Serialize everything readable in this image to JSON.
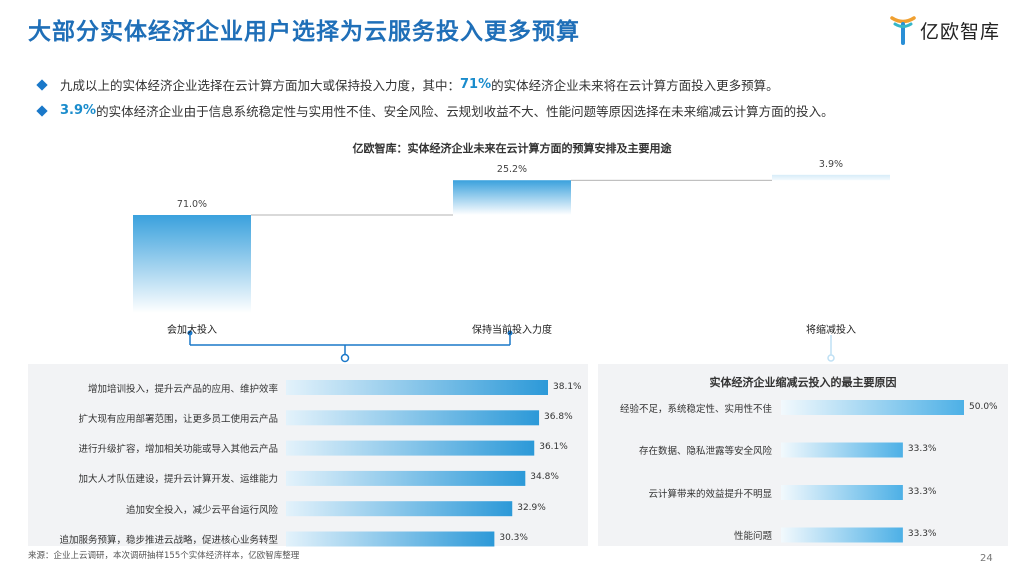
{
  "page": {
    "title": "大部分实体经济企业用户选择为云服务投入更多预算",
    "logo_text": "亿欧智库",
    "bullets": [
      {
        "pre": "九成以上的实体经济企业选择在云计算方面加大或保持投入力度，其中：",
        "highlight": "71%",
        "post": "的实体经济企业未来将在云计算方面投入更多预算。"
      },
      {
        "pre": "",
        "highlight": "3.9%",
        "post": "的实体经济企业由于信息系统稳定性与实用性不佳、安全风险、云规划收益不大、性能问题等原因选择在未来缩减云计算方面的投入。"
      }
    ],
    "source": "来源：企业上云调研，本次调研抽样155个实体经济样本，亿欧智库整理",
    "page_number": "24"
  },
  "chart_data": [
    {
      "type": "waterfall",
      "title": "亿欧智库：实体经济企业未来在云计算方面的预算安排及主要用途",
      "categories": [
        "会加大投入",
        "保持当前投入力度",
        "将缩减投入"
      ],
      "values": [
        71.0,
        25.2,
        3.9
      ],
      "value_labels": [
        "71.0%",
        "25.2%",
        "3.9%"
      ],
      "unit": "%",
      "colors": {
        "bar": "#3aa1dd",
        "bar_light": "#d6ecf8",
        "connector": "#9a9a9a"
      }
    },
    {
      "type": "bar",
      "orientation": "horizontal",
      "categories": [
        "增加培训投入，提升云产品的应用、维护效率",
        "扩大现有应用部署范围，让更多员工使用云产品",
        "进行升级扩容，增加相关功能或导入其他云产品",
        "加大人才队伍建设，提升云计算开发、运维能力",
        "追加安全投入，减少云平台运行风险",
        "追加服务预算，稳步推进云战略，促进核心业务转型"
      ],
      "values": [
        38.1,
        36.8,
        36.1,
        34.8,
        32.9,
        30.3
      ],
      "value_labels": [
        "38.1%",
        "36.8%",
        "36.1%",
        "34.8%",
        "32.9%",
        "30.3%"
      ],
      "unit": "%",
      "colors": {
        "start": "#e3f2fb",
        "end": "#2c99d8"
      }
    },
    {
      "type": "bar",
      "orientation": "horizontal",
      "title": "实体经济企业缩减云投入的最主要原因",
      "categories": [
        "经验不足，系统稳定性、实用性不佳",
        "存在数据、隐私泄露等安全风险",
        "云计算带来的效益提升不明显",
        "性能问题"
      ],
      "values": [
        50.0,
        33.3,
        33.3,
        33.3
      ],
      "value_labels": [
        "50.0%",
        "33.3%",
        "33.3%",
        "33.3%"
      ],
      "unit": "%",
      "colors": {
        "start": "#f2f9fd",
        "end": "#4db0e6"
      }
    }
  ]
}
